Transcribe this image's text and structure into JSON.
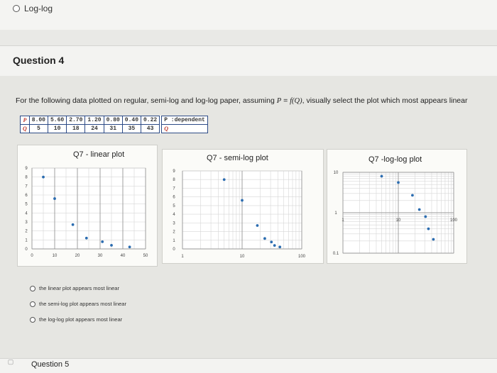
{
  "top_option": {
    "label": "Log-log"
  },
  "question4": {
    "title": "Question 4",
    "prompt_before": "For the following data plotted on regular, semi-log and log-log paper, assuming ",
    "prompt_formula_lhs": "P",
    "prompt_formula_mid": " = ",
    "prompt_formula_rhs": "f(Q)",
    "prompt_after": ", visually select the plot which most appears linear",
    "table": {
      "p_label": "P",
      "p_values": [
        "8.00",
        "5.60",
        "2.70",
        "1.20",
        "0.80",
        "0.40",
        "0.22"
      ],
      "q_label": "Q",
      "q_values": [
        "5",
        "10",
        "18",
        "24",
        "31",
        "35",
        "43"
      ],
      "legend_p": "P :dependent",
      "legend_q": "Q"
    },
    "options": [
      {
        "label": "the linear plot appears most linear"
      },
      {
        "label": "the semi-log plot appears most linear"
      },
      {
        "label": "the log-log plot appears most linear"
      }
    ]
  },
  "chart_data": [
    {
      "type": "scatter",
      "title": "Q7 - linear plot",
      "x": [
        5,
        10,
        18,
        24,
        31,
        35,
        43
      ],
      "y": [
        8.0,
        5.6,
        2.7,
        1.2,
        0.8,
        0.4,
        0.22
      ],
      "xlim": [
        0,
        50
      ],
      "ylim": [
        0,
        9
      ],
      "xticks": [
        "0",
        "10",
        "20",
        "30",
        "40",
        "50"
      ],
      "yticks": [
        "0",
        "1",
        "2",
        "3",
        "4",
        "5",
        "6",
        "7",
        "8",
        "9"
      ],
      "grid": true,
      "point_color": "#2b6cb0"
    },
    {
      "type": "scatter",
      "title": "Q7 - semi-log plot",
      "x": [
        5,
        10,
        18,
        24,
        31,
        35,
        43
      ],
      "y": [
        8.0,
        5.6,
        2.7,
        1.2,
        0.8,
        0.4,
        0.22
      ],
      "xscale": "log",
      "xlim": [
        1,
        100
      ],
      "ylim": [
        0,
        9
      ],
      "xticks": [
        "1",
        "10",
        "100"
      ],
      "yticks": [
        "0",
        "1",
        "2",
        "3",
        "4",
        "5",
        "6",
        "7",
        "8",
        "9"
      ],
      "grid": true,
      "point_color": "#2b6cb0"
    },
    {
      "type": "scatter",
      "title": "Q7 -log-log plot",
      "x": [
        5,
        10,
        18,
        24,
        31,
        35,
        43
      ],
      "y": [
        8.0,
        5.6,
        2.7,
        1.2,
        0.8,
        0.4,
        0.22
      ],
      "xscale": "log",
      "yscale": "log",
      "xlim": [
        1,
        100
      ],
      "ylim": [
        0.1,
        10
      ],
      "xticks": [
        "1",
        "10",
        "100"
      ],
      "yticks": [
        "0.1",
        "1",
        "10"
      ],
      "grid": true,
      "point_color": "#2b6cb0"
    }
  ],
  "question5": {
    "title": "Question 5"
  }
}
